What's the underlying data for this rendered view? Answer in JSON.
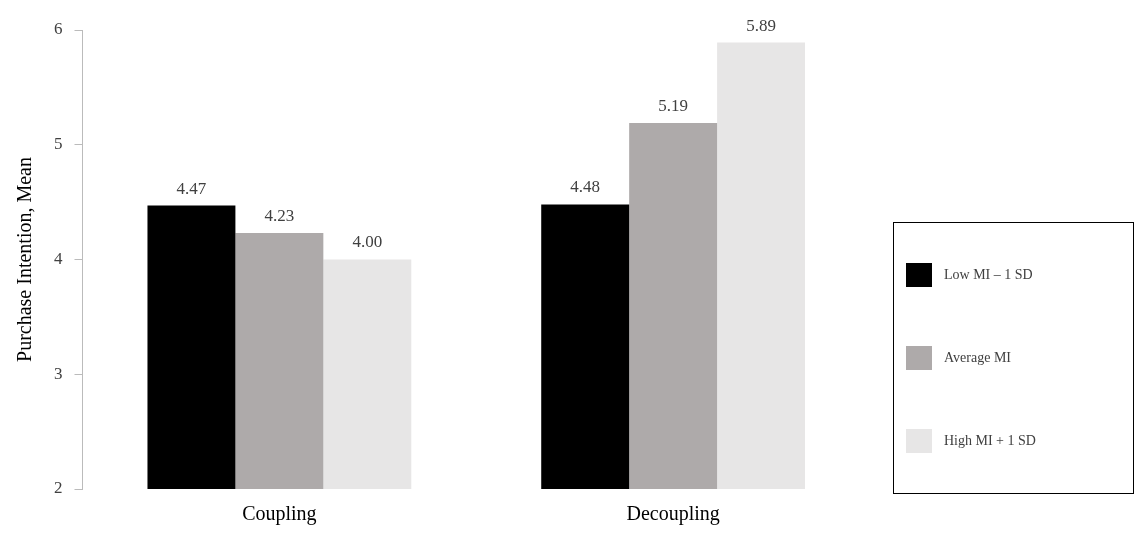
{
  "chart_data": {
    "type": "bar",
    "ylabel": "Purchase Intention, Mean",
    "categories": [
      "Coupling",
      "Decoupling"
    ],
    "series": [
      {
        "name": "Low MI – 1 SD",
        "color": "#000000",
        "values": [
          4.47,
          4.48
        ],
        "value_labels": [
          "4.47",
          "4.48"
        ]
      },
      {
        "name": "Average MI",
        "color": "#aeaaaa",
        "values": [
          4.23,
          5.19
        ],
        "value_labels": [
          "4.23",
          "5.19"
        ]
      },
      {
        "name": "High MI + 1 SD",
        "color": "#e7e6e6",
        "values": [
          4.0,
          5.89
        ],
        "value_labels": [
          "4.00",
          "5.89"
        ]
      }
    ],
    "ylim": [
      2,
      6
    ],
    "yticks": [
      2,
      3,
      4,
      5,
      6
    ],
    "grid": false,
    "legend": "right"
  }
}
